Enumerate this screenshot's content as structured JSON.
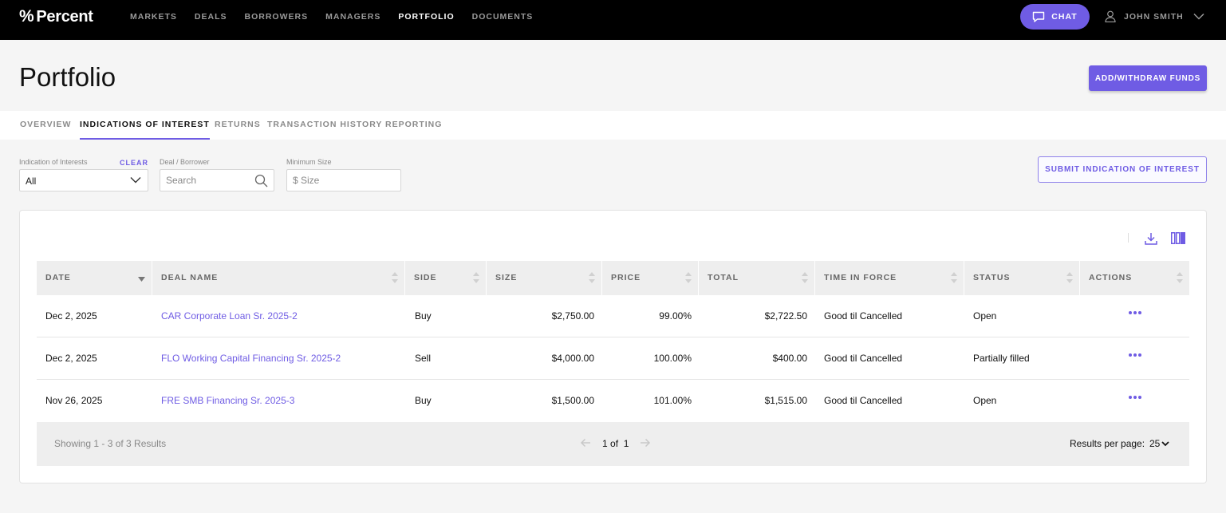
{
  "brand": {
    "name": "Percent",
    "accent": "#6f5ce4"
  },
  "nav": {
    "items": [
      "MARKETS",
      "DEALS",
      "BORROWERS",
      "MANAGERS",
      "PORTFOLIO",
      "DOCUMENTS"
    ],
    "active": "PORTFOLIO"
  },
  "chat": {
    "label": "CHAT"
  },
  "user": {
    "name": "JOHN SMITH"
  },
  "page": {
    "title": "Portfolio",
    "funds_button": "ADD/WITHDRAW FUNDS"
  },
  "tabs": {
    "items": [
      "OVERVIEW",
      "INDICATIONS OF INTEREST",
      "RETURNS",
      "TRANSACTION HISTORY",
      "REPORTING"
    ],
    "active": "INDICATIONS OF INTEREST"
  },
  "filters": {
    "ioi_label": "Indication of Interests",
    "clear_label": "CLEAR",
    "ioi_value": "All",
    "deal_label": "Deal / Borrower",
    "deal_placeholder": "Search",
    "size_label": "Minimum Size",
    "size_placeholder": "$ Size",
    "submit_button": "SUBMIT INDICATION OF INTEREST"
  },
  "table": {
    "columns": [
      "DATE",
      "DEAL NAME",
      "SIDE",
      "SIZE",
      "PRICE",
      "TOTAL",
      "TIME IN FORCE",
      "STATUS",
      "ACTIONS"
    ],
    "rows": [
      {
        "date": "Dec 2, 2025",
        "deal": "CAR Corporate Loan Sr. 2025-2",
        "side": "Buy",
        "size": "$2,750.00",
        "price": "99.00%",
        "total": "$2,722.50",
        "tif": "Good til Cancelled",
        "status": "Open"
      },
      {
        "date": "Dec 2, 2025",
        "deal": "FLO Working Capital Financing Sr. 2025-2",
        "side": "Sell",
        "size": "$4,000.00",
        "price": "100.00%",
        "total": "$400.00",
        "tif": "Good til Cancelled",
        "status": "Partially filled"
      },
      {
        "date": "Nov 26, 2025",
        "deal": "FRE SMB Financing Sr. 2025-3",
        "side": "Buy",
        "size": "$1,500.00",
        "price": "101.00%",
        "total": "$1,515.00",
        "tif": "Good til Cancelled",
        "status": "Open"
      }
    ]
  },
  "footer": {
    "showing": "Showing 1 - 3 of 3 Results",
    "page_current": "1",
    "page_of": "of",
    "page_total": "1",
    "rpp_label": "Results per page:",
    "rpp_value": "25"
  }
}
